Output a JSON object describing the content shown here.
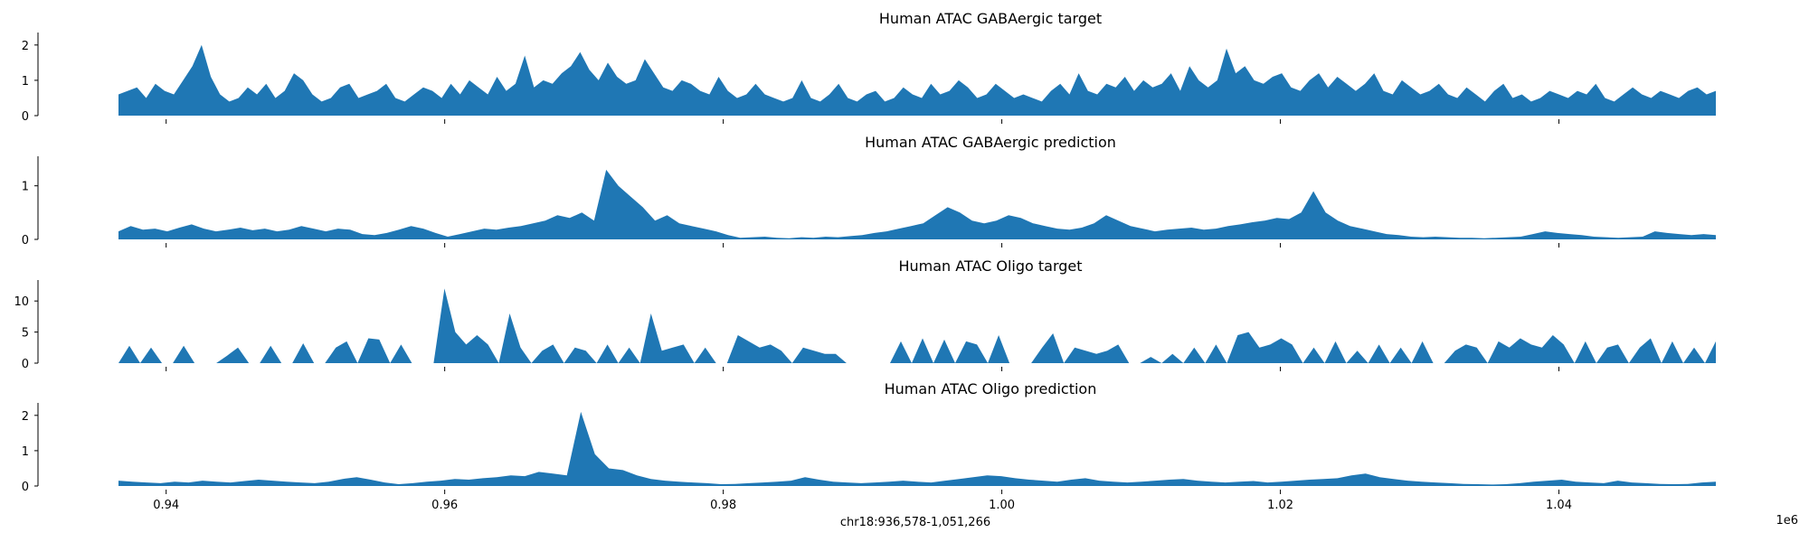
{
  "chart_data": {
    "type": "area",
    "color": "#1f77b4",
    "x_range": [
      936578,
      1051266
    ],
    "xlabel": "chr18:936,578-1,051,266",
    "x_offset_label": "1e6",
    "x_ticks": [
      0.94,
      0.96,
      0.98,
      1.0,
      1.02,
      1.04
    ],
    "x_tick_labels": [
      "0.94",
      "0.96",
      "0.98",
      "1.00",
      "1.02",
      "1.04"
    ],
    "grid": false,
    "legend": "none",
    "panels": [
      {
        "title": "Human ATAC GABAergic target",
        "ylim": [
          0,
          2.2
        ],
        "y_ticks": [
          0,
          1,
          2
        ],
        "y_tick_labels": [
          "0",
          "1",
          "2"
        ],
        "values": [
          0.6,
          0.7,
          0.8,
          0.5,
          0.9,
          0.7,
          0.6,
          1.0,
          1.4,
          2.0,
          1.1,
          0.6,
          0.4,
          0.5,
          0.8,
          0.6,
          0.9,
          0.5,
          0.7,
          1.2,
          1.0,
          0.6,
          0.4,
          0.5,
          0.8,
          0.9,
          0.5,
          0.6,
          0.7,
          0.9,
          0.5,
          0.4,
          0.6,
          0.8,
          0.7,
          0.5,
          0.9,
          0.6,
          1.0,
          0.8,
          0.6,
          1.1,
          0.7,
          0.9,
          1.7,
          0.8,
          1.0,
          0.9,
          1.2,
          1.4,
          1.8,
          1.3,
          1.0,
          1.5,
          1.1,
          0.9,
          1.0,
          1.6,
          1.2,
          0.8,
          0.7,
          1.0,
          0.9,
          0.7,
          0.6,
          1.1,
          0.7,
          0.5,
          0.6,
          0.9,
          0.6,
          0.5,
          0.4,
          0.5,
          1.0,
          0.5,
          0.4,
          0.6,
          0.9,
          0.5,
          0.4,
          0.6,
          0.7,
          0.4,
          0.5,
          0.8,
          0.6,
          0.5,
          0.9,
          0.6,
          0.7,
          1.0,
          0.8,
          0.5,
          0.6,
          0.9,
          0.7,
          0.5,
          0.6,
          0.5,
          0.4,
          0.7,
          0.9,
          0.6,
          1.2,
          0.7,
          0.6,
          0.9,
          0.8,
          1.1,
          0.7,
          1.0,
          0.8,
          0.9,
          1.2,
          0.7,
          1.4,
          1.0,
          0.8,
          1.0,
          1.9,
          1.2,
          1.4,
          1.0,
          0.9,
          1.1,
          1.2,
          0.8,
          0.7,
          1.0,
          1.2,
          0.8,
          1.1,
          0.9,
          0.7,
          0.9,
          1.2,
          0.7,
          0.6,
          1.0,
          0.8,
          0.6,
          0.7,
          0.9,
          0.6,
          0.5,
          0.8,
          0.6,
          0.4,
          0.7,
          0.9,
          0.5,
          0.6,
          0.4,
          0.5,
          0.7,
          0.6,
          0.5,
          0.7,
          0.6,
          0.9,
          0.5,
          0.4,
          0.6,
          0.8,
          0.6,
          0.5,
          0.7,
          0.6,
          0.5,
          0.7,
          0.8,
          0.6,
          0.7
        ],
        "series_name": ""
      },
      {
        "title": "Human ATAC GABAergic prediction",
        "ylim": [
          0,
          1.45
        ],
        "y_ticks": [
          0,
          1
        ],
        "y_tick_labels": [
          "0",
          "1"
        ],
        "values": [
          0.15,
          0.25,
          0.18,
          0.2,
          0.15,
          0.22,
          0.28,
          0.2,
          0.15,
          0.18,
          0.22,
          0.17,
          0.2,
          0.15,
          0.18,
          0.25,
          0.2,
          0.15,
          0.2,
          0.18,
          0.1,
          0.08,
          0.12,
          0.18,
          0.25,
          0.2,
          0.12,
          0.05,
          0.1,
          0.15,
          0.2,
          0.18,
          0.22,
          0.25,
          0.3,
          0.35,
          0.45,
          0.4,
          0.5,
          0.35,
          1.3,
          1.0,
          0.8,
          0.6,
          0.35,
          0.45,
          0.3,
          0.25,
          0.2,
          0.15,
          0.08,
          0.03,
          0.04,
          0.05,
          0.03,
          0.02,
          0.04,
          0.03,
          0.05,
          0.04,
          0.06,
          0.08,
          0.12,
          0.15,
          0.2,
          0.25,
          0.3,
          0.45,
          0.6,
          0.5,
          0.35,
          0.3,
          0.35,
          0.45,
          0.4,
          0.3,
          0.25,
          0.2,
          0.18,
          0.22,
          0.3,
          0.45,
          0.35,
          0.25,
          0.2,
          0.15,
          0.18,
          0.2,
          0.22,
          0.18,
          0.2,
          0.25,
          0.28,
          0.32,
          0.35,
          0.4,
          0.38,
          0.5,
          0.9,
          0.5,
          0.35,
          0.25,
          0.2,
          0.15,
          0.1,
          0.08,
          0.05,
          0.04,
          0.05,
          0.04,
          0.03,
          0.03,
          0.02,
          0.03,
          0.04,
          0.05,
          0.1,
          0.15,
          0.12,
          0.1,
          0.08,
          0.05,
          0.04,
          0.03,
          0.04,
          0.05,
          0.15,
          0.12,
          0.1,
          0.08,
          0.1,
          0.08
        ],
        "series_name": ""
      },
      {
        "title": "Human ATAC Oligo target",
        "ylim": [
          0,
          12.5
        ],
        "y_ticks": [
          0,
          5,
          10
        ],
        "y_tick_labels": [
          "0",
          "5",
          "10"
        ],
        "values": [
          0,
          2.8,
          0,
          2.5,
          0,
          0,
          2.8,
          0,
          0,
          0,
          1.2,
          2.5,
          0,
          0,
          2.8,
          0,
          0,
          3.2,
          0,
          0,
          2.5,
          3.5,
          0,
          4.0,
          3.8,
          0,
          3.0,
          0,
          0,
          0,
          12.0,
          5.0,
          3.0,
          4.5,
          3.0,
          0,
          8.0,
          2.5,
          0,
          2.0,
          3.0,
          0,
          2.5,
          2.0,
          0,
          3.0,
          0,
          2.5,
          0,
          8.0,
          2.0,
          2.5,
          3.0,
          0,
          2.5,
          0,
          0,
          4.5,
          3.5,
          2.5,
          3.0,
          2.0,
          0,
          2.5,
          2.0,
          1.5,
          1.5,
          0,
          0,
          0,
          0,
          0,
          3.5,
          0,
          4.0,
          0,
          3.8,
          0,
          3.5,
          3.0,
          0,
          4.5,
          0,
          0,
          0,
          2.5,
          4.8,
          0,
          2.5,
          2.0,
          1.5,
          2.0,
          3.0,
          0,
          0,
          1.0,
          0,
          1.5,
          0,
          2.5,
          0,
          3.0,
          0,
          4.5,
          5.0,
          2.5,
          3.0,
          4.0,
          3.0,
          0,
          2.5,
          0,
          3.5,
          0,
          2.0,
          0,
          3.0,
          0,
          2.5,
          0,
          3.5,
          0,
          0,
          2.0,
          3.0,
          2.5,
          0,
          3.5,
          2.5,
          4.0,
          3.0,
          2.5,
          4.5,
          3.0,
          0,
          3.5,
          0,
          2.5,
          3.0,
          0,
          2.5,
          4.0,
          0,
          3.5,
          0,
          2.5,
          0,
          3.5
        ],
        "series_name": ""
      },
      {
        "title": "Human ATAC Oligo prediction",
        "ylim": [
          0,
          2.2
        ],
        "y_ticks": [
          0,
          1,
          2
        ],
        "y_tick_labels": [
          "0",
          "1",
          "2"
        ],
        "values": [
          0.15,
          0.12,
          0.1,
          0.08,
          0.12,
          0.1,
          0.15,
          0.12,
          0.1,
          0.14,
          0.18,
          0.15,
          0.12,
          0.1,
          0.08,
          0.12,
          0.2,
          0.25,
          0.18,
          0.1,
          0.05,
          0.08,
          0.12,
          0.15,
          0.2,
          0.18,
          0.22,
          0.25,
          0.3,
          0.28,
          0.4,
          0.35,
          0.3,
          2.1,
          0.9,
          0.5,
          0.45,
          0.3,
          0.2,
          0.15,
          0.12,
          0.1,
          0.08,
          0.05,
          0.06,
          0.08,
          0.1,
          0.12,
          0.15,
          0.25,
          0.18,
          0.12,
          0.1,
          0.08,
          0.1,
          0.12,
          0.15,
          0.12,
          0.1,
          0.15,
          0.2,
          0.25,
          0.3,
          0.28,
          0.22,
          0.18,
          0.15,
          0.12,
          0.18,
          0.22,
          0.15,
          0.12,
          0.1,
          0.12,
          0.15,
          0.18,
          0.2,
          0.15,
          0.12,
          0.1,
          0.12,
          0.14,
          0.1,
          0.12,
          0.15,
          0.18,
          0.2,
          0.22,
          0.3,
          0.35,
          0.25,
          0.2,
          0.15,
          0.12,
          0.1,
          0.08,
          0.06,
          0.05,
          0.04,
          0.05,
          0.08,
          0.12,
          0.15,
          0.18,
          0.12,
          0.1,
          0.08,
          0.15,
          0.1,
          0.08,
          0.06,
          0.05,
          0.06,
          0.1,
          0.12
        ],
        "series_name": ""
      }
    ]
  }
}
